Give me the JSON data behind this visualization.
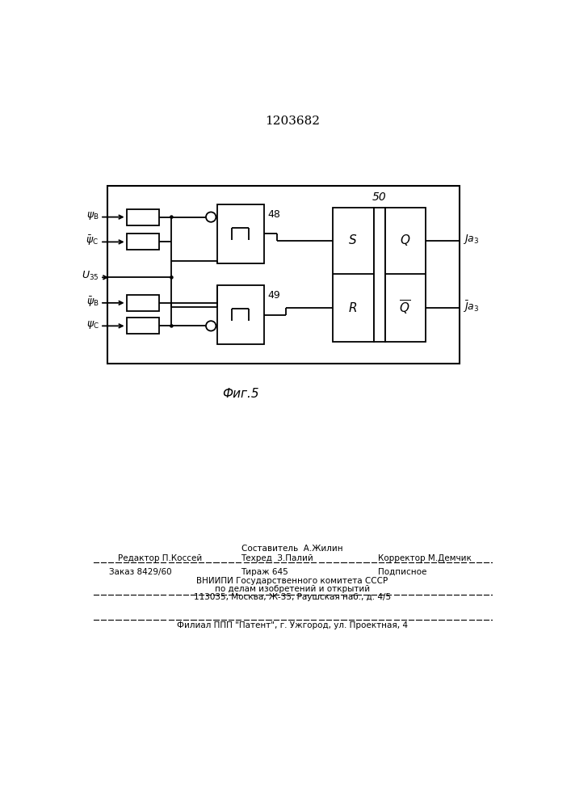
{
  "title": "1203682",
  "background_color": "#ffffff",
  "line_color": "#000000",
  "footer": {
    "sestavitel": "Составитель  А.Жилин",
    "redaktor": "Редактор П.Коссей",
    "tehred": "Техред  З.Палий",
    "korrektor": "Корректор М.Демчик",
    "zakaz": "Заказ 8429/60",
    "tirazh": "Тираж 645",
    "podpisnoe": "Подписное",
    "vniip": "ВНИИПИ Государственного комитета СССР",
    "po_delam": "по делам изобретений и открытий",
    "address": "113035, Москва, Ж-35, Раушская наб., д. 4/5",
    "filial": "Филиал ППП \"Патент\", г. Ужгород, ул. Проектная, 4"
  }
}
